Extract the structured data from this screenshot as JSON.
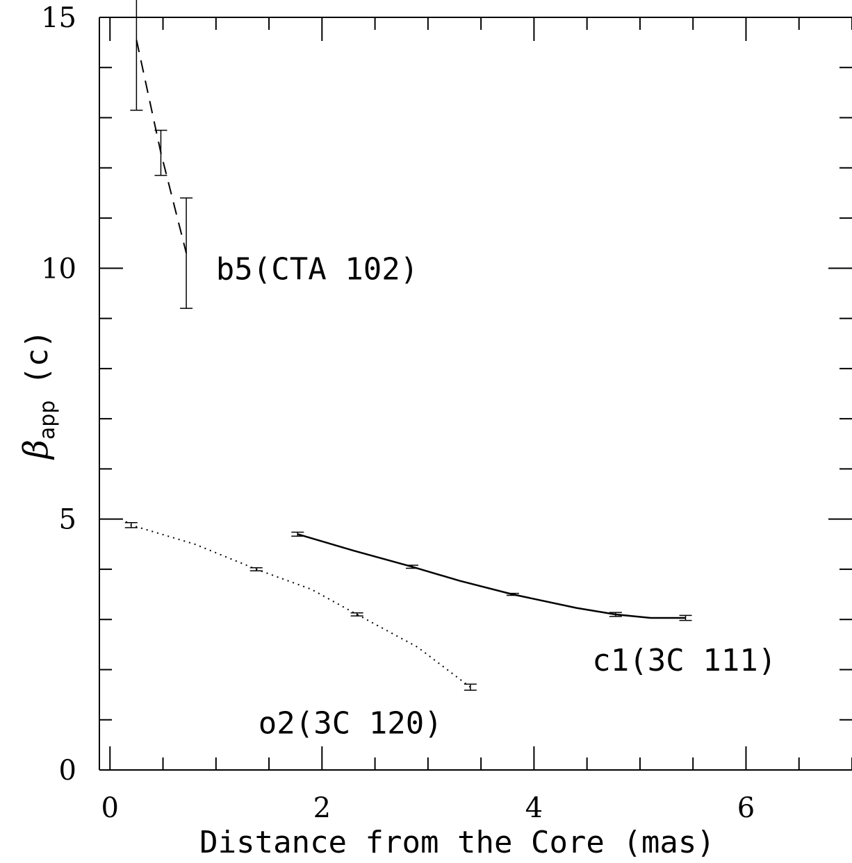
{
  "chart_data": {
    "type": "line",
    "title": "",
    "xlabel": "Distance from the Core (mas)",
    "ylabel_main": "β",
    "ylabel_sub": "app",
    "ylabel_unit": "(c)",
    "xlim": [
      -0.1,
      7
    ],
    "ylim": [
      0,
      15
    ],
    "x_ticks": [
      0,
      2,
      4,
      6
    ],
    "y_ticks": [
      0,
      5,
      10,
      15
    ],
    "x_tick_labels": [
      "0",
      "2",
      "4",
      "6"
    ],
    "y_tick_labels": [
      "0",
      "5",
      "10",
      "15"
    ],
    "x_minor_step": 0.5,
    "y_minor_step": 1,
    "grid": false,
    "series": [
      {
        "name": "b5(CTA 102)",
        "style": "dashed",
        "points": [
          {
            "x": 0.25,
            "y": 14.55,
            "err": 1.4
          },
          {
            "x": 0.48,
            "y": 12.3,
            "err": 0.45
          },
          {
            "x": 0.72,
            "y": 10.3,
            "err": 1.1
          }
        ]
      },
      {
        "name": "c1(3C 111)",
        "style": "solid",
        "points": [
          {
            "x": 1.77,
            "y": 4.7,
            "err": 0.04
          },
          {
            "x": 2.85,
            "y": 4.05,
            "err": 0.03
          },
          {
            "x": 3.8,
            "y": 3.5,
            "err": 0.02
          },
          {
            "x": 4.77,
            "y": 3.1,
            "err": 0.04
          },
          {
            "x": 5.43,
            "y": 3.03,
            "err": 0.05
          }
        ],
        "curve": [
          [
            1.77,
            4.7
          ],
          [
            2.3,
            4.37
          ],
          [
            2.85,
            4.05
          ],
          [
            3.3,
            3.77
          ],
          [
            3.8,
            3.5
          ],
          [
            4.4,
            3.23
          ],
          [
            4.77,
            3.1
          ],
          [
            5.1,
            3.03
          ],
          [
            5.43,
            3.03
          ]
        ]
      },
      {
        "name": "o2(3C 120)",
        "style": "dotted",
        "points": [
          {
            "x": 0.2,
            "y": 4.88,
            "err": 0.05
          },
          {
            "x": 1.38,
            "y": 4.0,
            "err": 0.03
          },
          {
            "x": 2.33,
            "y": 3.1,
            "err": 0.03
          },
          {
            "x": 3.4,
            "y": 1.65,
            "err": 0.06
          }
        ],
        "curve": [
          [
            0.15,
            4.95
          ],
          [
            0.2,
            4.88
          ],
          [
            0.8,
            4.5
          ],
          [
            1.38,
            4.0
          ],
          [
            1.9,
            3.6
          ],
          [
            2.33,
            3.1
          ],
          [
            2.9,
            2.45
          ],
          [
            3.4,
            1.65
          ]
        ]
      }
    ],
    "annotations": [
      {
        "text": "b5(CTA 102)",
        "x": 1.0,
        "y": 10.0
      },
      {
        "text": "c1(3C 111)",
        "x": 4.55,
        "y": 2.2
      },
      {
        "text": "o2(3C 120)",
        "x": 1.4,
        "y": 0.95
      }
    ]
  }
}
